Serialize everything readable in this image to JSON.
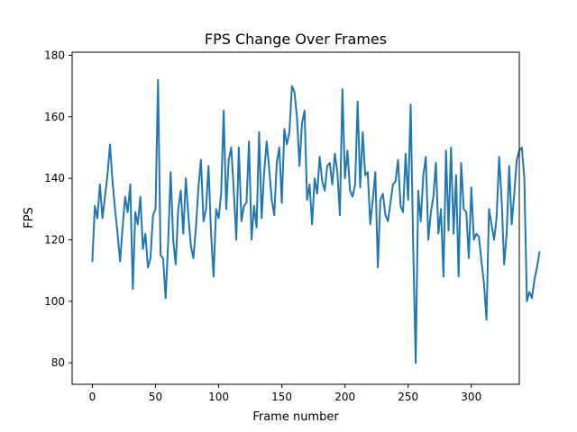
{
  "chart_data": {
    "type": "line",
    "title": "FPS Change Over Frames",
    "xlabel": "Frame number",
    "ylabel": "FPS",
    "xlim": [
      -16,
      338
    ],
    "ylim": [
      73,
      181
    ],
    "x_ticks": [
      0,
      50,
      100,
      150,
      200,
      250,
      300
    ],
    "y_ticks": [
      80,
      100,
      120,
      140,
      160,
      180
    ],
    "grid": false,
    "series": [
      {
        "color": "#1f77b4",
        "x_start": 0,
        "x_step": 2,
        "values": [
          113,
          131,
          127,
          138,
          127,
          134,
          141,
          151,
          139,
          130,
          122,
          113,
          124,
          134,
          129,
          138,
          104,
          129,
          125,
          134,
          117,
          122,
          111,
          114,
          128,
          130,
          172,
          115,
          114,
          101,
          119,
          142,
          120,
          112,
          130,
          136,
          122,
          140,
          128,
          118,
          114,
          124,
          137,
          146,
          126,
          130,
          144,
          122,
          108,
          130,
          127,
          135,
          162,
          130,
          146,
          150,
          136,
          120,
          150,
          126,
          131,
          132,
          152,
          120,
          131,
          124,
          155,
          127,
          142,
          152,
          143,
          133,
          128,
          145,
          150,
          132,
          156,
          151,
          155,
          170,
          168,
          160,
          144,
          158,
          162,
          133,
          138,
          125,
          140,
          135,
          147,
          139,
          136,
          144,
          145,
          138,
          148,
          142,
          128,
          169,
          140,
          149,
          136,
          134,
          138,
          165,
          137,
          155,
          141,
          142,
          125,
          133,
          142,
          111,
          133,
          135,
          128,
          126,
          132,
          138,
          139,
          146,
          131,
          129,
          148,
          133,
          164,
          118,
          80,
          136,
          126,
          141,
          147,
          120,
          129,
          134,
          145,
          122,
          130,
          108,
          149,
          123,
          150,
          122,
          141,
          108,
          145,
          130,
          129,
          114,
          137,
          120,
          122,
          121,
          113,
          106,
          94,
          130,
          125,
          120,
          127,
          147,
          133,
          112,
          122,
          144,
          125,
          135,
          146,
          149,
          150,
          140,
          100,
          103,
          101,
          107,
          111,
          116
        ]
      }
    ]
  }
}
